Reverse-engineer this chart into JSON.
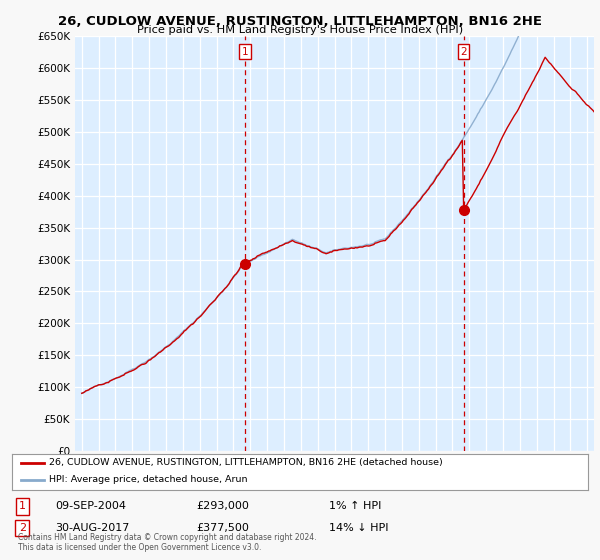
{
  "title": "26, CUDLOW AVENUE, RUSTINGTON, LITTLEHAMPTON, BN16 2HE",
  "subtitle": "Price paid vs. HM Land Registry's House Price Index (HPI)",
  "legend_line1": "26, CUDLOW AVENUE, RUSTINGTON, LITTLEHAMPTON, BN16 2HE (detached house)",
  "legend_line2": "HPI: Average price, detached house, Arun",
  "annotation1_date": "09-SEP-2004",
  "annotation1_price": "£293,000",
  "annotation1_hpi": "1% ↑ HPI",
  "annotation2_date": "30-AUG-2017",
  "annotation2_price": "£377,500",
  "annotation2_hpi": "14% ↓ HPI",
  "footer": "Contains HM Land Registry data © Crown copyright and database right 2024.\nThis data is licensed under the Open Government Licence v3.0.",
  "red_color": "#cc0000",
  "blue_color": "#88aacc",
  "background_color": "#ddeeff",
  "ylim": [
    0,
    650000
  ],
  "ytick_step": 50000,
  "marker1_x": 2004.69,
  "marker1_y": 293000,
  "marker2_x": 2017.66,
  "marker2_y": 377500,
  "xmin": 1994.6,
  "xmax": 2025.4
}
